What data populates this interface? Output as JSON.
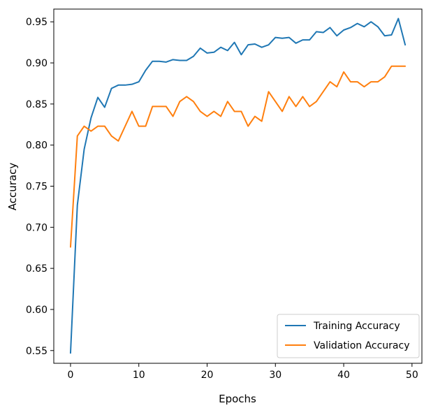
{
  "chart_data": {
    "type": "line",
    "title": "",
    "xlabel": "Epochs",
    "ylabel": "Accuracy",
    "xlim": [
      -2.45,
      51.45
    ],
    "ylim": [
      0.5345,
      0.9655
    ],
    "xticks": [
      0,
      10,
      20,
      30,
      40,
      50
    ],
    "yticks": [
      0.55,
      0.6,
      0.65,
      0.7,
      0.75,
      0.8,
      0.85,
      0.9,
      0.95
    ],
    "ytick_labels": [
      "0.55",
      "0.60",
      "0.65",
      "0.70",
      "0.75",
      "0.80",
      "0.85",
      "0.90",
      "0.95"
    ],
    "grid": false,
    "legend_position": "lower-right",
    "x": [
      0,
      1,
      2,
      3,
      4,
      5,
      6,
      7,
      8,
      9,
      10,
      11,
      12,
      13,
      14,
      15,
      16,
      17,
      18,
      19,
      20,
      21,
      22,
      23,
      24,
      25,
      26,
      27,
      28,
      29,
      30,
      31,
      32,
      33,
      34,
      35,
      36,
      37,
      38,
      39,
      40,
      41,
      42,
      43,
      44,
      45,
      46,
      47,
      48,
      49
    ],
    "series": [
      {
        "name": "Training Accuracy",
        "color": "#1f77b4",
        "values": [
          0.547,
          0.727,
          0.795,
          0.833,
          0.858,
          0.846,
          0.869,
          0.873,
          0.873,
          0.874,
          0.877,
          0.891,
          0.902,
          0.902,
          0.901,
          0.904,
          0.903,
          0.903,
          0.908,
          0.918,
          0.912,
          0.913,
          0.919,
          0.915,
          0.925,
          0.91,
          0.922,
          0.923,
          0.919,
          0.922,
          0.931,
          0.93,
          0.931,
          0.924,
          0.928,
          0.928,
          0.938,
          0.937,
          0.943,
          0.933,
          0.94,
          0.943,
          0.948,
          0.944,
          0.95,
          0.944,
          0.933,
          0.934,
          0.954,
          0.922
        ]
      },
      {
        "name": "Validation Accuracy",
        "color": "#ff7f0e",
        "values": [
          0.676,
          0.811,
          0.823,
          0.817,
          0.823,
          0.823,
          0.811,
          0.805,
          0.823,
          0.841,
          0.823,
          0.823,
          0.847,
          0.847,
          0.847,
          0.835,
          0.853,
          0.859,
          0.853,
          0.841,
          0.835,
          0.841,
          0.835,
          0.853,
          0.841,
          0.841,
          0.823,
          0.835,
          0.829,
          0.865,
          0.853,
          0.841,
          0.859,
          0.847,
          0.859,
          0.847,
          0.853,
          0.865,
          0.877,
          0.871,
          0.889,
          0.877,
          0.877,
          0.871,
          0.877,
          0.877,
          0.883,
          0.896,
          0.896,
          0.896
        ]
      }
    ]
  }
}
